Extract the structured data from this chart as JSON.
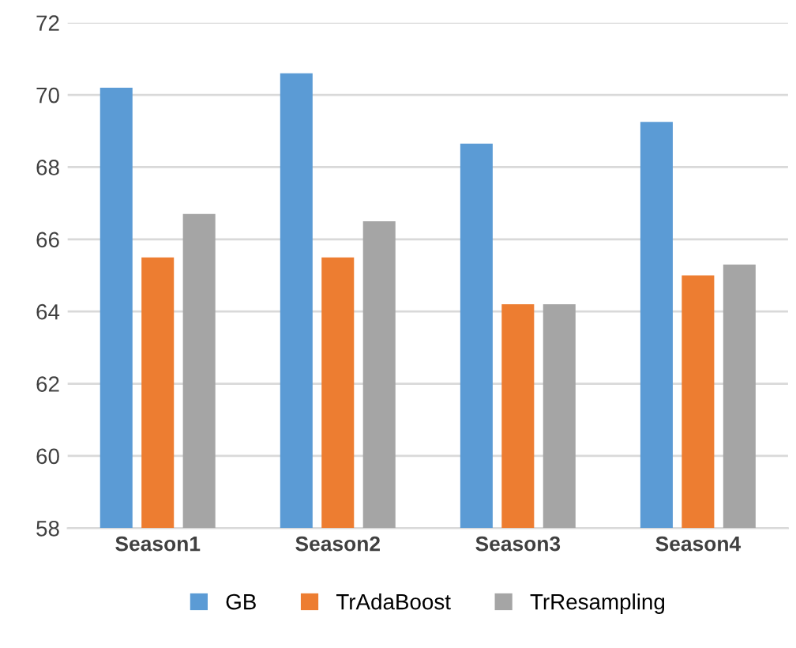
{
  "chart_data": {
    "type": "bar",
    "categories": [
      "Season1",
      "Season2",
      "Season3",
      "Season4"
    ],
    "series": [
      {
        "name": "GB",
        "color": "#5b9bd5",
        "values": [
          70.2,
          70.6,
          68.65,
          69.25
        ]
      },
      {
        "name": "TrAdaBoost",
        "color": "#ed7d31",
        "values": [
          65.5,
          65.5,
          64.2,
          65.0
        ]
      },
      {
        "name": "TrResampling",
        "color": "#a5a5a5",
        "values": [
          66.7,
          66.5,
          64.2,
          65.3
        ]
      }
    ],
    "ylim": [
      58,
      72
    ],
    "yticks": [
      58,
      60,
      62,
      64,
      66,
      68,
      70,
      72
    ],
    "grid": "y",
    "legend": "bottom"
  }
}
